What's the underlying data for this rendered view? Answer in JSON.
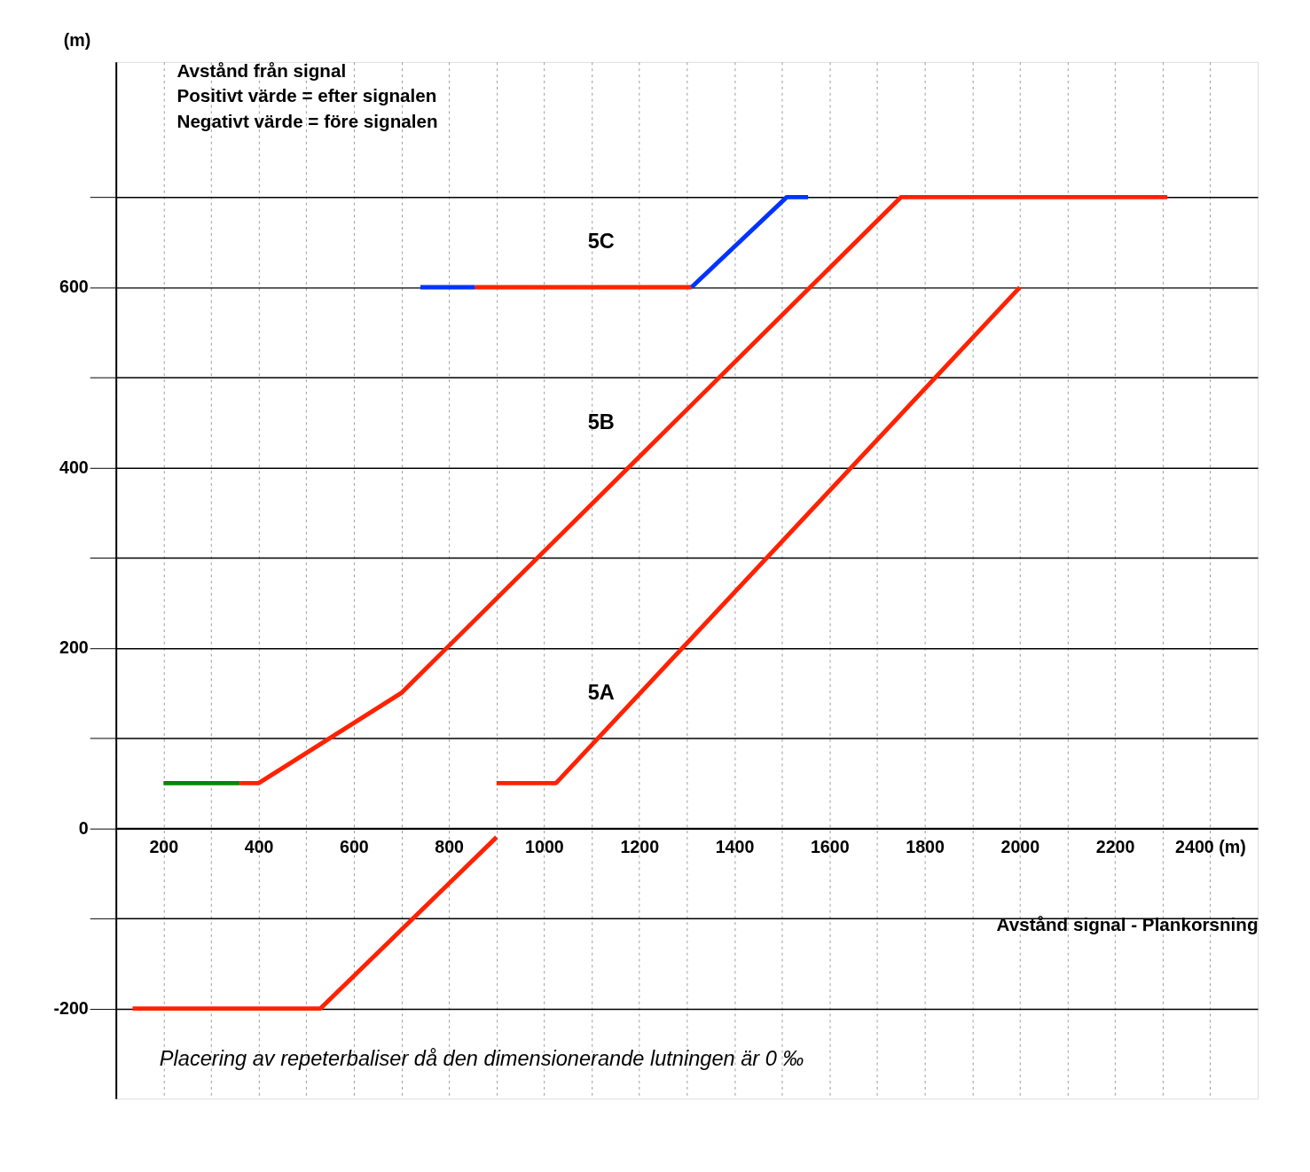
{
  "chart_data": {
    "type": "line",
    "xlabel": "Avstånd signal - Plankorsning",
    "ylabel": "(m)",
    "annotations": [
      "Avstånd från signal\nPositivt värde = efter signalen\nNegativt värde = före signalen",
      "Placering av repeterbaliser då den dimensionerande lutningen är 0 ‰",
      "5C",
      "5B",
      "5A"
    ],
    "series": [
      {
        "color": "#ff2200",
        "x": [
          900,
          1025,
          2000
        ],
        "values": [
          50,
          50,
          600
        ]
      },
      {
        "color": "#008800",
        "x": [
          200,
          360
        ],
        "values": [
          50,
          50
        ]
      },
      {
        "color": "#ff2200",
        "x": [
          360,
          400,
          700,
          1750,
          2310
        ],
        "values": [
          50,
          50,
          150,
          700,
          700
        ]
      },
      {
        "color": "#0033ff",
        "x": [
          740,
          855
        ],
        "values": [
          600,
          600
        ]
      },
      {
        "color": "#ff2200",
        "x": [
          855,
          1310
        ],
        "values": [
          600,
          600
        ]
      },
      {
        "color": "#0033ff",
        "x": [
          1310,
          1510,
          1555
        ],
        "values": [
          600,
          700,
          700
        ]
      },
      {
        "color": "#ff2200",
        "x": [
          135,
          530,
          900
        ],
        "values": [
          -200,
          -200,
          -10
        ]
      }
    ],
    "xlim": [
      100,
      2500
    ],
    "ylim": [
      -300,
      850
    ],
    "xticks": [
      {
        "value": 100,
        "label": null
      },
      200,
      {
        "value": 300,
        "label": null
      },
      400,
      {
        "value": 500,
        "label": null
      },
      600,
      {
        "value": 700,
        "label": null
      },
      800,
      {
        "value": 900,
        "label": null
      },
      1000,
      {
        "value": 1100,
        "label": null
      },
      1200,
      {
        "value": 1300,
        "label": null
      },
      1400,
      {
        "value": 1500,
        "label": null
      },
      1600,
      {
        "value": 1700,
        "label": null
      },
      1800,
      {
        "value": 1900,
        "label": null
      },
      2000,
      {
        "value": 2100,
        "label": null
      },
      2200,
      {
        "value": 2300,
        "label": null
      },
      {
        "value": 2400,
        "label": "2400 (m)"
      }
    ],
    "yticks": [
      -200,
      {
        "value": -100,
        "label": null
      },
      0,
      {
        "value": 100,
        "label": null
      },
      200,
      {
        "value": 300,
        "label": null
      },
      400,
      {
        "value": 500,
        "label": null
      },
      600,
      {
        "value": 700,
        "label": null
      }
    ],
    "grid": true,
    "line_style": "solid",
    "marker": "none"
  }
}
